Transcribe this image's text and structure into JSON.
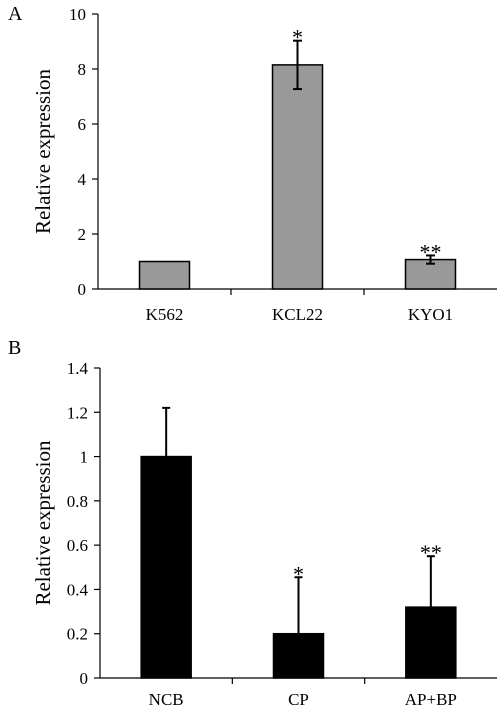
{
  "chart_data": [
    {
      "panel_label": "A",
      "type": "bar",
      "ylabel": "Relative expression",
      "ylim": [
        0,
        10
      ],
      "yticks": [
        0,
        2,
        4,
        6,
        8,
        10
      ],
      "categories": [
        "K562",
        "KCL22",
        "KYO1"
      ],
      "series": [
        {
          "values": [
            1.0,
            8.15,
            1.07
          ],
          "errors": [
            0.0,
            0.88,
            0.15
          ],
          "error_style": "both",
          "color": "#999999",
          "annotations": [
            "",
            "*",
            "**"
          ]
        }
      ],
      "grid": false,
      "legend": "none"
    },
    {
      "panel_label": "B",
      "type": "bar",
      "ylabel": "Relative expression",
      "ylim": [
        0,
        1.4
      ],
      "yticks": [
        0,
        0.2,
        0.4,
        0.6,
        0.8,
        1,
        1.2,
        1.4
      ],
      "categories": [
        "NCB",
        "CP",
        "AP+BP"
      ],
      "series": [
        {
          "values": [
            1.0,
            0.2,
            0.32
          ],
          "errors": [
            0.22,
            0.255,
            0.23
          ],
          "error_style": "upper",
          "color": "#000000",
          "annotations": [
            "",
            "*",
            "**"
          ]
        }
      ],
      "grid": false,
      "legend": "none"
    }
  ]
}
